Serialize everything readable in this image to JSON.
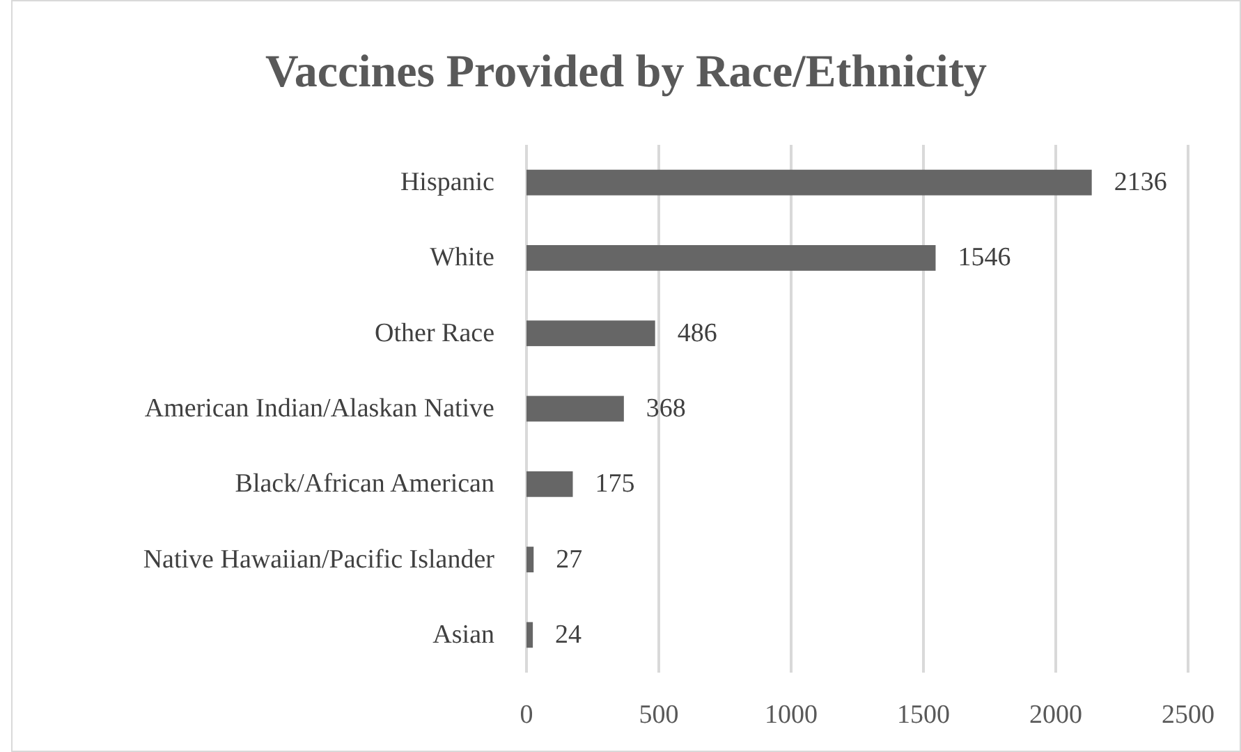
{
  "chart_data": {
    "type": "bar",
    "orientation": "horizontal",
    "title": "Vaccines Provided by Race/Ethnicity",
    "categories": [
      "Hispanic",
      "White",
      "Other Race",
      "American Indian/Alaskan Native",
      "Black/African American",
      "Native Hawaiian/Pacific Islander",
      "Asian"
    ],
    "values": [
      2136,
      1546,
      486,
      368,
      175,
      27,
      24
    ],
    "color": "#666666",
    "xlim": [
      0,
      2500
    ],
    "xticks": [
      0,
      500,
      1000,
      1500,
      2000,
      2500
    ],
    "grid": "x",
    "data_labels": true
  }
}
